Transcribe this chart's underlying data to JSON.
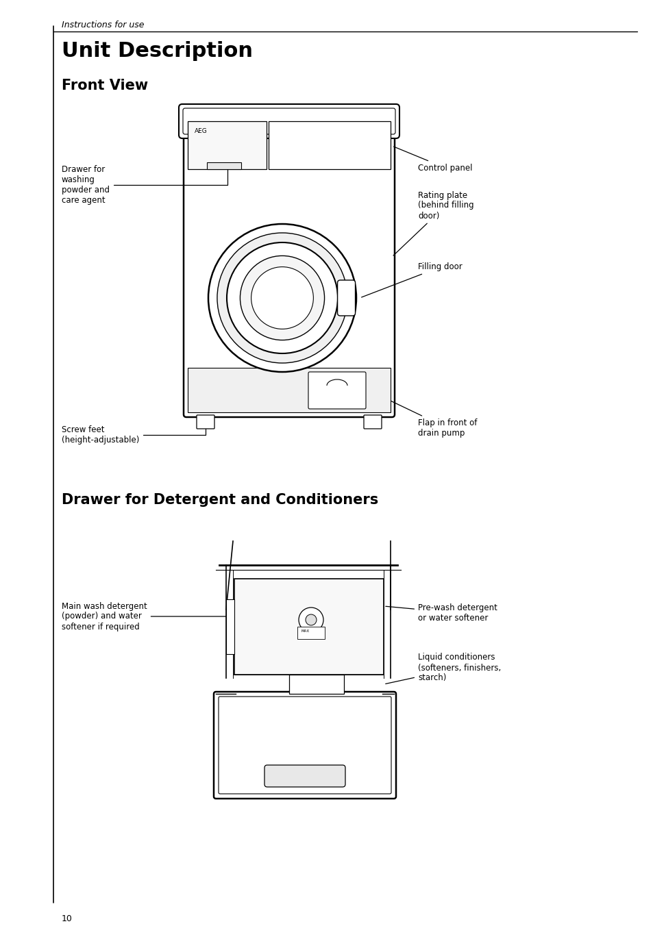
{
  "page_header": "Instructions for use",
  "title1": "Unit Description",
  "title2": "Front View",
  "title3": "Drawer for Detergent and Conditioners",
  "page_number": "10",
  "bg_color": "#ffffff",
  "text_color": "#000000"
}
